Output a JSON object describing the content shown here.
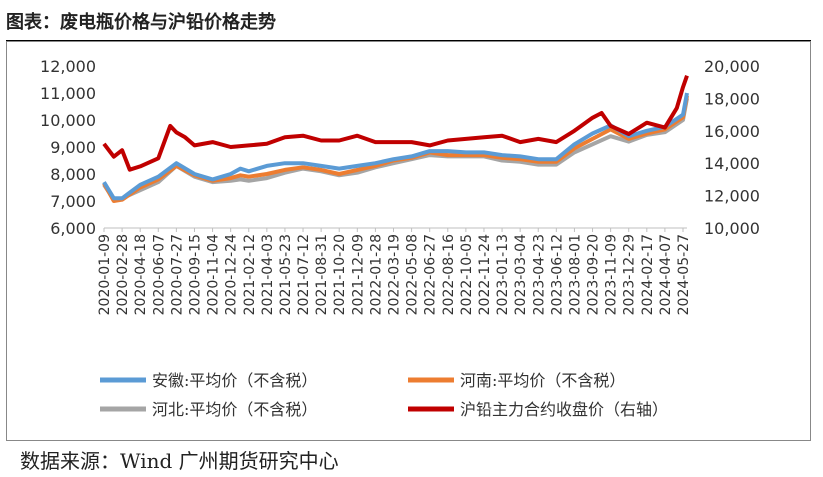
{
  "header": {
    "title": "图表：废电瓶价格与沪铅价格走势"
  },
  "footer": {
    "source": "数据来源：Wind 广州期货研究中心"
  },
  "chart_data": {
    "type": "line",
    "title": "图表：废电瓶价格与沪铅价格走势",
    "xlabel": "",
    "ylabel": "",
    "y_left": {
      "ylim": [
        6000,
        12000
      ],
      "ticks": [
        "6,000",
        "7,000",
        "8,000",
        "9,000",
        "10,000",
        "11,000",
        "12,000"
      ]
    },
    "y_right": {
      "ylim": [
        10000,
        20000
      ],
      "ticks": [
        "10,000",
        "12,000",
        "14,000",
        "16,000",
        "18,000",
        "20,000"
      ]
    },
    "x_ticks": [
      "2020-01-09",
      "2020-02-28",
      "2020-04-18",
      "2020-06-07",
      "2020-07-27",
      "2020-09-15",
      "2020-11-04",
      "2020-12-24",
      "2021-02-12",
      "2021-04-03",
      "2021-05-23",
      "2021-07-12",
      "2021-08-31",
      "2021-10-20",
      "2021-12-09",
      "2022-01-28",
      "2022-03-19",
      "2022-05-08",
      "2022-06-27",
      "2022-08-16",
      "2022-10-05",
      "2022-11-24",
      "2023-01-13",
      "2023-03-04",
      "2023-04-23",
      "2023-06-12",
      "2023-08-01",
      "2023-09-20",
      "2023-11-09",
      "2023-12-29",
      "2024-02-17",
      "2024-04-07",
      "2024-05-27"
    ],
    "grid": false,
    "legend_position": "bottom",
    "series": [
      {
        "name": "安徽:平均价（不含税）",
        "axis": "left",
        "color": "#5b9bd5",
        "x": [
          "2020-01-09",
          "2020-02-05",
          "2020-02-28",
          "2020-04-18",
          "2020-06-07",
          "2020-07-27",
          "2020-09-15",
          "2020-11-04",
          "2020-12-24",
          "2021-01-20",
          "2021-02-12",
          "2021-04-03",
          "2021-05-23",
          "2021-07-12",
          "2021-08-31",
          "2021-10-20",
          "2021-12-09",
          "2022-01-28",
          "2022-03-19",
          "2022-05-08",
          "2022-06-27",
          "2022-08-16",
          "2022-10-05",
          "2022-11-24",
          "2023-01-13",
          "2023-03-04",
          "2023-04-23",
          "2023-06-12",
          "2023-08-01",
          "2023-09-20",
          "2023-11-09",
          "2023-12-29",
          "2024-02-17",
          "2024-04-07",
          "2024-05-27",
          "2024-06-07"
        ],
        "values": [
          7700,
          7100,
          7100,
          7600,
          7900,
          8400,
          8000,
          7800,
          8000,
          8200,
          8100,
          8300,
          8400,
          8400,
          8300,
          8200,
          8300,
          8400,
          8550,
          8650,
          8850,
          8850,
          8800,
          8800,
          8700,
          8650,
          8550,
          8550,
          9100,
          9500,
          9800,
          9400,
          9600,
          9750,
          10200,
          11000
        ]
      },
      {
        "name": "河南:平均价（不含税）",
        "axis": "left",
        "color": "#ed7d31",
        "x": [
          "2020-01-09",
          "2020-02-05",
          "2020-02-28",
          "2020-04-18",
          "2020-06-07",
          "2020-07-27",
          "2020-09-15",
          "2020-11-04",
          "2020-12-24",
          "2021-01-20",
          "2021-02-12",
          "2021-04-03",
          "2021-05-23",
          "2021-07-12",
          "2021-08-31",
          "2021-10-20",
          "2021-12-09",
          "2022-01-28",
          "2022-03-19",
          "2022-05-08",
          "2022-06-27",
          "2022-08-16",
          "2022-10-05",
          "2022-11-24",
          "2023-01-13",
          "2023-03-04",
          "2023-04-23",
          "2023-06-12",
          "2023-08-01",
          "2023-09-20",
          "2023-11-09",
          "2023-12-29",
          "2024-02-17",
          "2024-04-07",
          "2024-05-27",
          "2024-06-07"
        ],
        "values": [
          7650,
          7000,
          7050,
          7500,
          7800,
          8300,
          7950,
          7750,
          7850,
          7950,
          7900,
          8000,
          8150,
          8250,
          8150,
          8000,
          8150,
          8300,
          8500,
          8600,
          8800,
          8700,
          8700,
          8700,
          8600,
          8550,
          8450,
          8450,
          8950,
          9300,
          9650,
          9300,
          9500,
          9650,
          10100,
          10900
        ]
      },
      {
        "name": "河北:平均价（不含税）",
        "axis": "left",
        "color": "#a5a5a5",
        "x": [
          "2020-01-09",
          "2020-02-05",
          "2020-02-28",
          "2020-04-18",
          "2020-06-07",
          "2020-07-27",
          "2020-09-15",
          "2020-11-04",
          "2020-12-24",
          "2021-01-20",
          "2021-02-12",
          "2021-04-03",
          "2021-05-23",
          "2021-07-12",
          "2021-08-31",
          "2021-10-20",
          "2021-12-09",
          "2022-01-28",
          "2022-03-19",
          "2022-05-08",
          "2022-06-27",
          "2022-08-16",
          "2022-10-05",
          "2022-11-24",
          "2023-01-13",
          "2023-03-04",
          "2023-04-23",
          "2023-06-12",
          "2023-08-01",
          "2023-09-20",
          "2023-11-09",
          "2023-12-29",
          "2024-02-17",
          "2024-04-07",
          "2024-05-27",
          "2024-06-07"
        ],
        "values": [
          7600,
          7050,
          7100,
          7400,
          7700,
          8300,
          7900,
          7700,
          7750,
          7800,
          7750,
          7850,
          8050,
          8200,
          8100,
          7950,
          8050,
          8250,
          8400,
          8550,
          8700,
          8650,
          8650,
          8650,
          8500,
          8450,
          8350,
          8350,
          8800,
          9100,
          9400,
          9200,
          9450,
          9550,
          10000,
          10800
        ]
      },
      {
        "name": "沪铅主力合约收盘价（右轴）",
        "axis": "right",
        "color": "#c00000",
        "x": [
          "2020-01-09",
          "2020-02-05",
          "2020-02-28",
          "2020-03-20",
          "2020-04-18",
          "2020-06-07",
          "2020-07-10",
          "2020-07-27",
          "2020-08-20",
          "2020-09-15",
          "2020-11-04",
          "2020-12-24",
          "2021-02-12",
          "2021-04-03",
          "2021-05-23",
          "2021-07-12",
          "2021-08-31",
          "2021-10-20",
          "2021-12-09",
          "2022-01-28",
          "2022-03-19",
          "2022-05-08",
          "2022-06-27",
          "2022-08-16",
          "2022-10-05",
          "2022-11-24",
          "2023-01-13",
          "2023-03-04",
          "2023-04-23",
          "2023-06-12",
          "2023-08-01",
          "2023-09-20",
          "2023-10-15",
          "2023-11-09",
          "2023-12-29",
          "2024-02-17",
          "2024-04-07",
          "2024-05-10",
          "2024-05-27",
          "2024-06-07"
        ],
        "values": [
          15200,
          14400,
          14800,
          13600,
          13800,
          14300,
          16300,
          15900,
          15600,
          15100,
          15300,
          15000,
          15100,
          15200,
          15600,
          15700,
          15400,
          15400,
          15700,
          15300,
          15300,
          15300,
          15100,
          15400,
          15500,
          15600,
          15700,
          15300,
          15500,
          15300,
          16000,
          16800,
          17100,
          16300,
          15800,
          16500,
          16200,
          17400,
          18700,
          19400
        ]
      }
    ]
  }
}
